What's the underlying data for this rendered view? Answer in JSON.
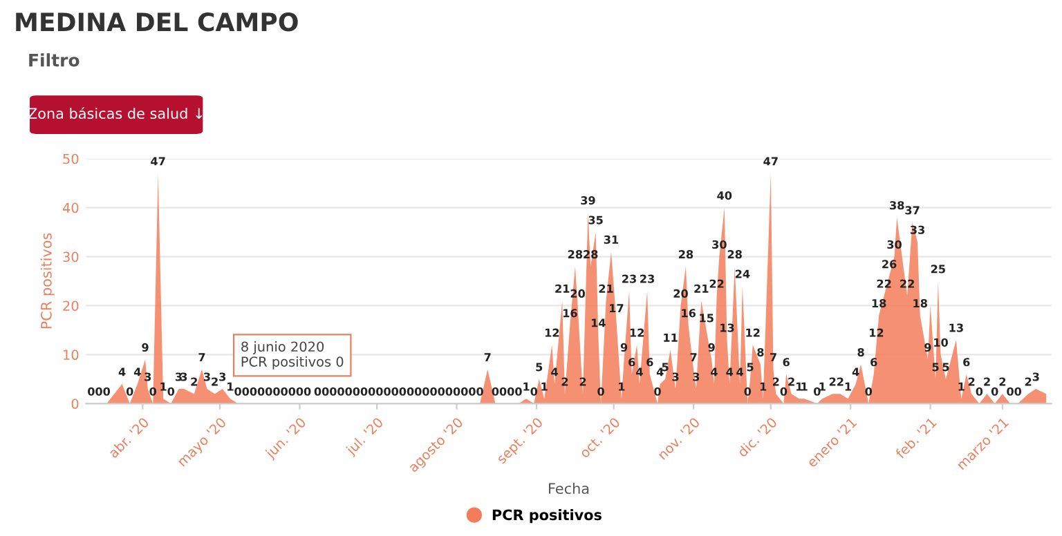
{
  "chart_data": {
    "type": "area",
    "title": "MEDINA DEL CAMPO",
    "xlabel": "Fecha",
    "ylabel": "PCR positivos",
    "annotations": [
      "Filtro",
      "Zona básicas de salud ↓",
      "8 junio 2020\nPCR positivos 0"
    ],
    "series": [
      {
        "name": "PCR positivos",
        "color": "#f47c5a",
        "x": [
          "2020-03-12",
          "2020-03-15",
          "2020-03-18",
          "2020-03-24",
          "2020-03-27",
          "2020-03-30",
          "2020-04-02",
          "2020-04-03",
          "2020-04-05",
          "2020-04-07",
          "2020-04-09",
          "2020-04-12",
          "2020-04-15",
          "2020-04-17",
          "2020-04-21",
          "2020-04-24",
          "2020-04-26",
          "2020-04-29",
          "2020-05-02",
          "2020-05-05",
          "2020-05-08",
          "2020-05-11",
          "2020-05-14",
          "2020-05-17",
          "2020-05-20",
          "2020-05-23",
          "2020-05-26",
          "2020-05-29",
          "2020-06-01",
          "2020-06-04",
          "2020-06-08",
          "2020-06-11",
          "2020-06-14",
          "2020-06-17",
          "2020-06-20",
          "2020-06-23",
          "2020-06-26",
          "2020-06-29",
          "2020-07-02",
          "2020-07-05",
          "2020-07-08",
          "2020-07-11",
          "2020-07-14",
          "2020-07-17",
          "2020-07-20",
          "2020-07-23",
          "2020-07-26",
          "2020-07-29",
          "2020-08-01",
          "2020-08-04",
          "2020-08-07",
          "2020-08-10",
          "2020-08-13",
          "2020-08-16",
          "2020-08-19",
          "2020-08-22",
          "2020-08-25",
          "2020-08-28",
          "2020-08-31",
          "2020-09-02",
          "2020-09-04",
          "2020-09-07",
          "2020-09-08",
          "2020-09-11",
          "2020-09-12",
          "2020-09-14",
          "2020-09-16",
          "2020-09-17",
          "2020-09-19",
          "2020-09-21",
          "2020-09-22",
          "2020-09-24",
          "2020-09-25",
          "2020-09-26",
          "2020-09-28",
          "2020-09-30",
          "2020-10-02",
          "2020-10-04",
          "2020-10-05",
          "2020-10-07",
          "2020-10-08",
          "2020-10-10",
          "2020-10-11",
          "2020-10-14",
          "2020-10-15",
          "2020-10-18",
          "2020-10-19",
          "2020-10-21",
          "2020-10-23",
          "2020-10-25",
          "2020-10-27",
          "2020-10-29",
          "2020-10-30",
          "2020-11-01",
          "2020-11-02",
          "2020-11-04",
          "2020-11-06",
          "2020-11-08",
          "2020-11-09",
          "2020-11-10",
          "2020-11-11",
          "2020-11-13",
          "2020-11-14",
          "2020-11-15",
          "2020-11-17",
          "2020-11-19",
          "2020-11-20",
          "2020-11-22",
          "2020-11-23",
          "2020-11-24",
          "2020-11-27",
          "2020-11-28",
          "2020-12-01",
          "2020-12-02",
          "2020-12-03",
          "2020-12-06",
          "2020-12-07",
          "2020-12-09",
          "2020-12-12",
          "2020-12-14",
          "2020-12-19",
          "2020-12-21",
          "2020-12-25",
          "2020-12-28",
          "2020-12-31",
          "2021-01-03",
          "2021-01-05",
          "2021-01-08",
          "2021-01-10",
          "2021-01-11",
          "2021-01-12",
          "2021-01-14",
          "2021-01-16",
          "2021-01-18",
          "2021-01-19",
          "2021-01-23",
          "2021-01-25",
          "2021-01-27",
          "2021-01-28",
          "2021-01-31",
          "2021-02-01",
          "2021-02-03",
          "2021-02-04",
          "2021-02-05",
          "2021-02-07",
          "2021-02-11",
          "2021-02-13",
          "2021-02-15",
          "2021-02-17",
          "2021-02-20",
          "2021-02-23",
          "2021-02-26",
          "2021-03-01",
          "2021-03-04",
          "2021-03-07",
          "2021-03-11",
          "2021-03-14",
          "2021-03-18"
        ],
        "values": [
          0,
          0,
          0,
          4,
          0,
          4,
          9,
          3,
          0,
          47,
          1,
          0,
          3,
          3,
          2,
          7,
          3,
          2,
          3,
          1,
          0,
          0,
          0,
          0,
          0,
          0,
          0,
          0,
          0,
          0,
          0,
          0,
          0,
          0,
          0,
          0,
          0,
          0,
          0,
          0,
          0,
          0,
          0,
          0,
          0,
          0,
          0,
          0,
          0,
          0,
          0,
          0,
          7,
          0,
          0,
          0,
          0,
          1,
          0,
          5,
          1,
          12,
          4,
          21,
          2,
          16,
          28,
          20,
          2,
          39,
          28,
          35,
          14,
          0,
          21,
          31,
          17,
          1,
          9,
          23,
          6,
          12,
          4,
          23,
          6,
          0,
          4,
          5,
          11,
          3,
          20,
          28,
          16,
          7,
          3,
          21,
          15,
          9,
          4,
          22,
          30,
          40,
          13,
          4,
          28,
          4,
          24,
          0,
          5,
          12,
          8,
          1,
          47,
          7,
          2,
          0,
          6,
          2,
          1,
          1,
          0,
          1,
          2,
          2,
          1,
          4,
          8,
          0,
          6,
          12,
          18,
          22,
          26,
          30,
          38,
          22,
          37,
          33,
          18,
          9,
          20,
          5,
          25,
          10,
          5,
          13,
          1,
          6,
          2,
          0,
          2,
          0,
          2,
          0,
          0,
          2,
          3,
          2
        ],
        "value_labels": [
          "0",
          "0",
          "0",
          "4",
          "0",
          "4",
          "9",
          "3",
          "0",
          "47",
          "1",
          "0",
          "3",
          "3",
          "2",
          "7",
          "3",
          "2",
          "3",
          "1",
          "0",
          "0",
          "0",
          "0",
          "0",
          "0",
          "0",
          "0",
          "0",
          "0",
          "0",
          "0",
          "0",
          "0",
          "0",
          "0",
          "0",
          "0",
          "0",
          "0",
          "0",
          "0",
          "0",
          "0",
          "0",
          "0",
          "0",
          "0",
          "0",
          "0",
          "0",
          "0",
          "7",
          "0",
          "0",
          "0",
          "0",
          "1",
          "0",
          "5",
          "1",
          "12",
          "4",
          "21",
          "2",
          "16",
          "28",
          "20",
          "2",
          "39",
          "28",
          "35",
          "14",
          "0",
          "21",
          "31",
          "17",
          "1",
          "9",
          "23",
          "6",
          "12",
          "4",
          "23",
          "6",
          "0",
          "4",
          "5",
          "11",
          "3",
          "20",
          "28",
          "16",
          "7",
          "3",
          "21",
          "15",
          "9",
          "4",
          "22",
          "30",
          "40",
          "13",
          "4",
          "28",
          "4",
          "24",
          "0",
          "5",
          "12",
          "8",
          "1",
          "47",
          "7",
          "2",
          "0",
          "6",
          "2",
          "1",
          "1",
          "0",
          "1",
          "2",
          "2",
          "1",
          "4",
          "8",
          "0",
          "6",
          "12",
          "18",
          "22",
          "26",
          "30",
          "38",
          "22",
          "37",
          "33",
          "18",
          "9",
          null,
          "5",
          "25",
          "10",
          "5",
          "13",
          "1",
          "6",
          "2",
          "0",
          "2",
          "0",
          "2",
          "0",
          "0",
          "2",
          "3",
          null
        ]
      }
    ],
    "xlim": [
      "2020-03-10",
      "2021-03-20"
    ],
    "xticks": [
      {
        "value": "2020-04-01",
        "label": "abr. '20"
      },
      {
        "value": "2020-05-01",
        "label": "mayo '20"
      },
      {
        "value": "2020-06-01",
        "label": "jun. '20"
      },
      {
        "value": "2020-07-01",
        "label": "jul. '20"
      },
      {
        "value": "2020-08-01",
        "label": "agosto '20"
      },
      {
        "value": "2020-09-01",
        "label": "sept. '20"
      },
      {
        "value": "2020-10-01",
        "label": "oct. '20"
      },
      {
        "value": "2020-11-01",
        "label": "nov. '20"
      },
      {
        "value": "2020-12-01",
        "label": "dic. '20"
      },
      {
        "value": "2021-01-01",
        "label": "enero '21"
      },
      {
        "value": "2021-02-01",
        "label": "feb. '21"
      },
      {
        "value": "2021-03-01",
        "label": "marzo '21"
      }
    ],
    "ylim": [
      0,
      50
    ],
    "yticks": [
      0,
      10,
      20,
      30,
      40,
      50
    ],
    "grid": "y",
    "legend": "bottom",
    "marker": "none"
  }
}
